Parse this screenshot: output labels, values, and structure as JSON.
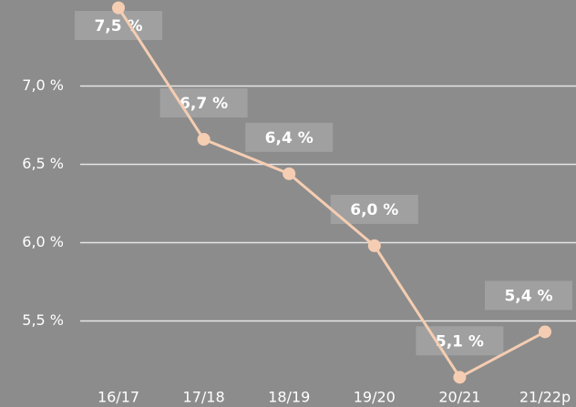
{
  "chart_data": {
    "type": "line",
    "categories": [
      "16/17",
      "17/18",
      "18/19",
      "19/20",
      "20/21",
      "21/22p"
    ],
    "series": [
      {
        "name": null,
        "color": "#f5cdb2",
        "values": [
          7.5,
          6.66,
          6.44,
          5.98,
          5.14,
          5.43
        ],
        "value_labels": [
          "7,5 %",
          "6,7 %",
          "6,4 %",
          "6,0 %",
          "5,1 %",
          "5,4 %"
        ]
      }
    ],
    "ylim": [
      4.95,
      7.55
    ],
    "yticks": [
      {
        "value": 5.5,
        "label": "5,5 %"
      },
      {
        "value": 6,
        "label": "6,0 %"
      },
      {
        "value": 6.5,
        "label": "6,5 %"
      },
      {
        "value": 7,
        "label": "7,0 %"
      }
    ],
    "grid": true
  }
}
